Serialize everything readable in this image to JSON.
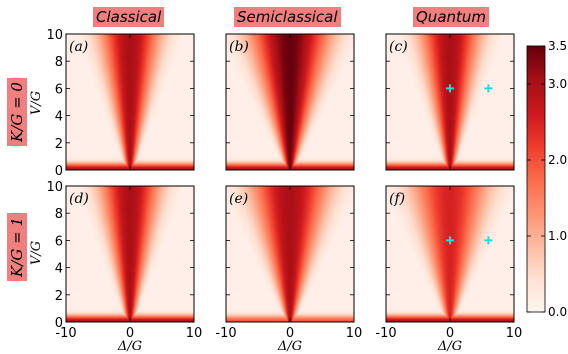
{
  "column_titles": [
    "Classical",
    "Semiclassical",
    "Quantum"
  ],
  "row_labels": [
    "K/G = 0",
    "K/G = 1"
  ],
  "panel_labels": [
    "(a)",
    "(b)",
    "(c)",
    "(d)",
    "(e)",
    "(f)"
  ],
  "ylabel": "V/G",
  "xlabel": "Δ/G",
  "colors": {
    "title_bg": "#f08080",
    "marker": "#22dddd",
    "cmap_low": "#fff5f0",
    "cmap_high": "#67000d"
  },
  "chart_data": {
    "type": "heatmap",
    "colormap": "Reds",
    "x_axis": {
      "label": "Δ/G",
      "range": [
        -10,
        10
      ],
      "ticks": [
        -10,
        0,
        10
      ]
    },
    "y_axis": {
      "label": "V/G",
      "range": [
        0,
        10
      ],
      "ticks": [
        0,
        2,
        4,
        6,
        8,
        10
      ]
    },
    "colorbar": {
      "range": [
        0.0,
        3.5
      ],
      "ticks": [
        "0.0",
        "1.0",
        "2.0",
        "3.0",
        "3.5"
      ]
    },
    "grid": false,
    "panels": [
      {
        "label": "(a)",
        "column": "Classical",
        "row": "K/G = 0",
        "peak": 3.0,
        "cone_half_width_at_V10": 3.0,
        "low_V_band": 3.0
      },
      {
        "label": "(b)",
        "column": "Semiclassical",
        "row": "K/G = 0",
        "peak": 3.5,
        "cone_half_width_at_V10": 4.0,
        "low_V_band": 3.0
      },
      {
        "label": "(c)",
        "column": "Quantum",
        "row": "K/G = 0",
        "peak": 3.0,
        "cone_half_width_at_V10": 3.0,
        "low_V_band": 3.0,
        "markers": [
          {
            "x": 0,
            "y": 6
          },
          {
            "x": 6,
            "y": 6
          }
        ]
      },
      {
        "label": "(d)",
        "column": "Classical",
        "row": "K/G = 1",
        "peak": 3.0,
        "cone_half_width_at_V10": 3.0,
        "low_V_band": 3.0
      },
      {
        "label": "(e)",
        "column": "Semiclassical",
        "row": "K/G = 1",
        "peak": 3.0,
        "cone_half_width_at_V10": 4.0,
        "low_V_band": 2.0
      },
      {
        "label": "(f)",
        "column": "Quantum",
        "row": "K/G = 1",
        "peak": 2.5,
        "cone_half_width_at_V10": 4.0,
        "low_V_band": 3.0,
        "markers": [
          {
            "x": 0,
            "y": 6
          },
          {
            "x": 6,
            "y": 6
          }
        ]
      }
    ]
  }
}
